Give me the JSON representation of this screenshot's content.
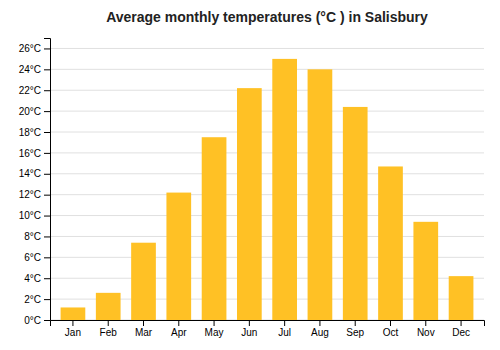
{
  "chart_data": {
    "type": "bar",
    "title": "Average monthly temperatures (°C ) in Salisbury",
    "categories": [
      "Jan",
      "Feb",
      "Mar",
      "Apr",
      "May",
      "Jun",
      "Jul",
      "Aug",
      "Sep",
      "Oct",
      "Nov",
      "Dec"
    ],
    "values": [
      1.2,
      2.6,
      7.4,
      12.2,
      17.5,
      22.2,
      25.0,
      24.0,
      20.4,
      14.7,
      9.4,
      4.2
    ],
    "color": "#FFC125",
    "ylim": [
      0,
      27
    ],
    "yticks": [
      {
        "value": 0,
        "label": "0°C"
      },
      {
        "value": 2,
        "label": "2°C"
      },
      {
        "value": 4,
        "label": "4°C"
      },
      {
        "value": 6,
        "label": "6°C"
      },
      {
        "value": 8,
        "label": "8°C"
      },
      {
        "value": 10,
        "label": "10°C"
      },
      {
        "value": 12,
        "label": "12°C"
      },
      {
        "value": 14,
        "label": "14°C"
      },
      {
        "value": 16,
        "label": "16°C"
      },
      {
        "value": 18,
        "label": "18°C"
      },
      {
        "value": 20,
        "label": "20°C"
      },
      {
        "value": 22,
        "label": "22°C"
      },
      {
        "value": 24,
        "label": "24°C"
      },
      {
        "value": 26,
        "label": "26°C"
      }
    ],
    "grid": true
  }
}
